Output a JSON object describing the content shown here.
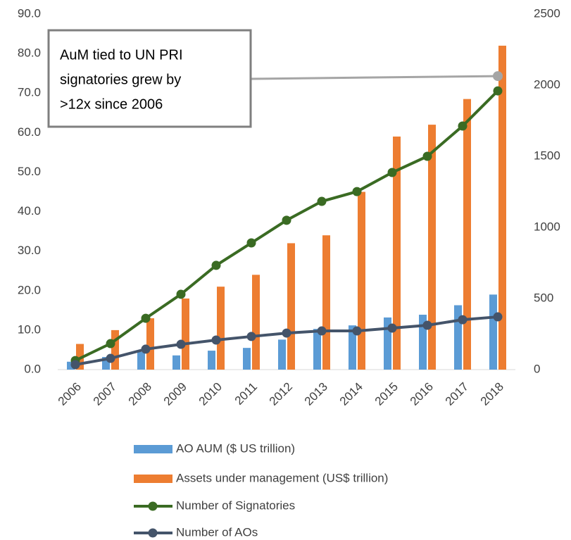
{
  "chart_data": {
    "type": "bar_line",
    "categories": [
      "2006",
      "2007",
      "2008",
      "2009",
      "2010",
      "2011",
      "2012",
      "2013",
      "2014",
      "2015",
      "2016",
      "2017",
      "2018"
    ],
    "series": [
      {
        "name": "AO AUM ($ US trillion)",
        "type": "bar",
        "color": "#5b9bd5",
        "values": [
          2.0,
          3.2,
          4.5,
          3.6,
          4.8,
          5.5,
          7.6,
          10.3,
          11.2,
          13.2,
          13.9,
          16.3,
          19.0
        ]
      },
      {
        "name": "Assets under management (US$ trillion)",
        "type": "bar",
        "color": "#ed7d31",
        "values": [
          6.5,
          10.0,
          13.0,
          18.0,
          21.0,
          24.0,
          32.0,
          34.0,
          45.0,
          59.0,
          62.0,
          68.5,
          82.0
        ]
      },
      {
        "name": "Number of Signatories",
        "type": "line",
        "axis": "y2",
        "color": "#3a6b23",
        "values": [
          64,
          183,
          361,
          530,
          733,
          891,
          1050,
          1183,
          1252,
          1386,
          1500,
          1713,
          1960
        ]
      },
      {
        "name": "Number of AOs",
        "type": "line",
        "axis": "y2",
        "color": "#44546a",
        "values": [
          35,
          79,
          144,
          178,
          208,
          233,
          257,
          272,
          272,
          292,
          312,
          351,
          371
        ]
      }
    ],
    "ylim": [
      0,
      90
    ],
    "yticks": [
      {
        "value": 0,
        "label": "0.0"
      },
      {
        "value": 10,
        "label": "10.0"
      },
      {
        "value": 20,
        "label": "20.0"
      },
      {
        "value": 30,
        "label": "30.0"
      },
      {
        "value": 40,
        "label": "40.0"
      },
      {
        "value": 50,
        "label": "50.0"
      },
      {
        "value": 60,
        "label": "60.0"
      },
      {
        "value": 70,
        "label": "70.0"
      },
      {
        "value": 80,
        "label": "80.0"
      },
      {
        "value": 90,
        "label": "90.0"
      }
    ],
    "y2lim": [
      0,
      2500
    ],
    "y2ticks": [
      0,
      500,
      1000,
      1500,
      2000,
      2500
    ],
    "annotation": {
      "lines": [
        "AuM tied to UN PRI",
        "signatories grew by",
        ">12x since 2006"
      ],
      "value": 2064
    }
  }
}
